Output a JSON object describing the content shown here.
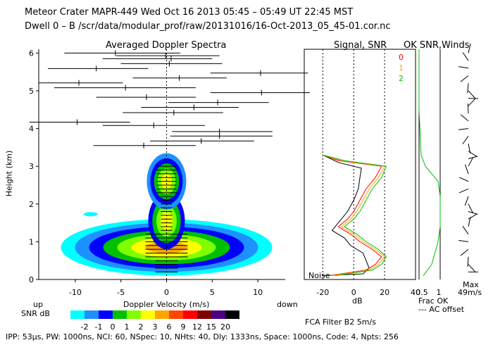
{
  "header": {
    "line1": "Meteor Crater   MAPR-449   Wed Oct 16 2013 05:45 – 05:49 UT 22:45 MST",
    "line2": "Dwell   0 –   B    /scr/data/modular_prof/raw/20131016/16-Oct-2013_05_45-01.cor.nc"
  },
  "footer": "IPP:  53μs,   PW: 1000ns,   NCI:  60,   NSpec: 10,  NHts: 40,   Dly: 1333ns,   Space: 1000ns,   Code: 4,   Npts: 256",
  "chart_data": [
    {
      "type": "heatmap",
      "title": "Averaged Doppler Spectra",
      "xlabel": "Doppler Velocity (m/s)",
      "ylabel": "Height (km)",
      "x_label_left": "up",
      "x_label_right": "down",
      "xlim": [
        -14,
        13
      ],
      "ylim": [
        0,
        6.1
      ],
      "x_ticks": [
        -10,
        -5,
        0,
        5,
        10
      ],
      "y_ticks": [
        0,
        1,
        2,
        3,
        4,
        5,
        6
      ],
      "colorbar": {
        "label": "SNR dB",
        "ticks": [
          "-2",
          "-1",
          "0",
          "1",
          "2",
          "3",
          "6",
          "9",
          "12",
          "15",
          "20"
        ],
        "colors": [
          "#00ffff",
          "#1e90ff",
          "#0000ff",
          "#00c000",
          "#80ff00",
          "#ffff00",
          "#ffa500",
          "#ff4500",
          "#ff0000",
          "#800000",
          "#4b0082",
          "#000000"
        ]
      },
      "wind_bars": [
        {
          "h": 6.0,
          "xmin": -11.2,
          "xmax": 1.5,
          "c": -5.6
        },
        {
          "h": 5.93,
          "xmin": -5.5,
          "xmax": 5.8,
          "c": -0.1
        },
        {
          "h": 5.85,
          "xmin": -7.0,
          "xmax": 5.0,
          "c": 0.5
        },
        {
          "h": 5.72,
          "xmin": -5.0,
          "xmax": 6.1,
          "c": 0.3
        },
        {
          "h": 5.59,
          "xmin": -13.0,
          "xmax": -2.0,
          "c": -7.7
        },
        {
          "h": 5.47,
          "xmin": 4.8,
          "xmax": 15.5,
          "c": 10.3
        },
        {
          "h": 5.34,
          "xmin": -3.7,
          "xmax": 6.6,
          "c": 1.4
        },
        {
          "h": 5.21,
          "xmin": -14.0,
          "xmax": -4.8,
          "c": -9.6
        },
        {
          "h": 5.08,
          "xmin": -12.3,
          "xmax": 3.2,
          "c": -4.5
        },
        {
          "h": 4.95,
          "xmin": 4.8,
          "xmax": 15.7,
          "c": 10.4
        },
        {
          "h": 4.83,
          "xmin": -7.7,
          "xmax": 3.2,
          "c": -2.2
        },
        {
          "h": 4.69,
          "xmin": 0.2,
          "xmax": 11.2,
          "c": 5.6
        },
        {
          "h": 4.56,
          "xmin": -2.8,
          "xmax": 7.9,
          "c": 3.0
        },
        {
          "h": 4.42,
          "xmin": -4.8,
          "xmax": 6.2,
          "c": 0.8
        },
        {
          "h": 4.17,
          "xmin": -15.0,
          "xmax": -4.0,
          "c": -9.8
        },
        {
          "h": 4.08,
          "xmin": -7.0,
          "xmax": 4.2,
          "c": -1.4
        },
        {
          "h": 3.92,
          "xmin": 0.6,
          "xmax": 11.6,
          "c": 5.8
        },
        {
          "h": 3.8,
          "xmin": 0.4,
          "xmax": 11.6,
          "c": 5.8
        },
        {
          "h": 3.67,
          "xmin": -1.8,
          "xmax": 9.6,
          "c": 3.8
        },
        {
          "h": 3.55,
          "xmin": -8.0,
          "xmax": 3.2,
          "c": -2.5
        }
      ],
      "noise_label": "Noise"
    },
    {
      "type": "line",
      "title": "Signal, SNR",
      "xlabel": "dB",
      "xlim": [
        -32,
        40
      ],
      "ylim": [
        0,
        6.1
      ],
      "x_ticks": [
        -20,
        0,
        20,
        40
      ],
      "series_labels": [
        "0",
        "1",
        "2"
      ],
      "series_colors": [
        "#ff0000",
        "#ffa500",
        "#00c000"
      ],
      "series": [
        {
          "name": "signal",
          "color": "#000000",
          "points": [
            [
              -20,
              3.3
            ],
            [
              -10,
              3.1
            ],
            [
              5,
              2.95
            ],
            [
              4,
              2.7
            ],
            [
              3,
              2.4
            ],
            [
              0,
              2.1
            ],
            [
              -4,
              1.8
            ],
            [
              -10,
              1.5
            ],
            [
              -14,
              1.3
            ],
            [
              -6,
              1.1
            ],
            [
              -2,
              0.9
            ],
            [
              6,
              0.7
            ],
            [
              8,
              0.5
            ],
            [
              10,
              0.3
            ],
            [
              6,
              0.15
            ],
            [
              -20,
              0.1
            ]
          ]
        },
        {
          "name": "0",
          "color": "#ff0000",
          "points": [
            [
              -20,
              3.3
            ],
            [
              -10,
              3.15
            ],
            [
              18,
              3.0
            ],
            [
              14,
              2.7
            ],
            [
              8,
              2.4
            ],
            [
              4,
              2.1
            ],
            [
              0,
              1.8
            ],
            [
              -4,
              1.6
            ],
            [
              -10,
              1.4
            ],
            [
              -2,
              1.2
            ],
            [
              4,
              1.0
            ],
            [
              12,
              0.8
            ],
            [
              18,
              0.6
            ],
            [
              14,
              0.4
            ],
            [
              8,
              0.25
            ],
            [
              -16,
              0.1
            ]
          ]
        },
        {
          "name": "1",
          "color": "#ffa500",
          "points": [
            [
              -20,
              3.3
            ],
            [
              -8,
              3.15
            ],
            [
              20,
              3.0
            ],
            [
              16,
              2.7
            ],
            [
              10,
              2.4
            ],
            [
              6,
              2.1
            ],
            [
              2,
              1.8
            ],
            [
              -2,
              1.6
            ],
            [
              -8,
              1.4
            ],
            [
              0,
              1.2
            ],
            [
              6,
              1.0
            ],
            [
              14,
              0.8
            ],
            [
              20,
              0.6
            ],
            [
              16,
              0.4
            ],
            [
              10,
              0.25
            ],
            [
              -14,
              0.1
            ]
          ]
        },
        {
          "name": "2",
          "color": "#00c000",
          "points": [
            [
              -20,
              3.3
            ],
            [
              -6,
              3.15
            ],
            [
              21,
              3.0
            ],
            [
              18,
              2.7
            ],
            [
              12,
              2.4
            ],
            [
              8,
              2.1
            ],
            [
              4,
              1.8
            ],
            [
              0,
              1.6
            ],
            [
              -6,
              1.4
            ],
            [
              2,
              1.2
            ],
            [
              8,
              1.0
            ],
            [
              16,
              0.8
            ],
            [
              21,
              0.6
            ],
            [
              18,
              0.4
            ],
            [
              12,
              0.25
            ],
            [
              -12,
              0.1
            ]
          ]
        }
      ]
    },
    {
      "type": "line",
      "title": "OK SNR,Winds",
      "xlim": [
        0,
        1
      ],
      "ylim": [
        0,
        6.1
      ],
      "x_ticks": [
        "0.5",
        "1"
      ],
      "frac_label": "Frac OK",
      "offset_label": "--- AC offset",
      "speed_label": "49m/s",
      "wind_label": "Max"
    }
  ],
  "fca": "FCA Filter B2   5m/s"
}
